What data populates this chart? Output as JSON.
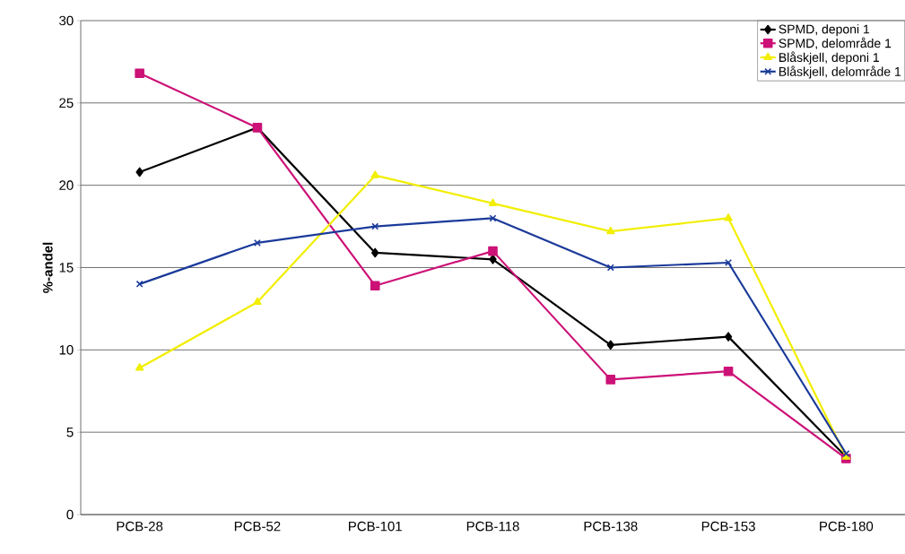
{
  "chart_data": {
    "type": "line",
    "ylabel": "%-andel",
    "categories": [
      "PCB-28",
      "PCB-52",
      "PCB-101",
      "PCB-118",
      "PCB-138",
      "PCB-153",
      "PCB-180"
    ],
    "series": [
      {
        "name": "SPMD, deponi 1",
        "color": "#000000",
        "marker": "diamond",
        "values": [
          20.8,
          23.5,
          15.9,
          15.5,
          10.3,
          10.8,
          3.5
        ]
      },
      {
        "name": "SPMD, delområde 1",
        "color": "#cc1177",
        "marker": "square",
        "values": [
          26.8,
          23.5,
          13.9,
          16.0,
          8.2,
          8.7,
          3.4
        ]
      },
      {
        "name": "Blåskjell, deponi 1",
        "color": "#f2ee00",
        "marker": "triangle",
        "values": [
          8.9,
          12.9,
          20.6,
          18.9,
          17.2,
          18.0,
          3.5
        ]
      },
      {
        "name": "Blåskjell, delområde 1",
        "color": "#1a3a9a",
        "marker": "cross",
        "values": [
          14.0,
          16.5,
          17.5,
          18.0,
          15.0,
          15.3,
          3.7
        ]
      }
    ],
    "ylim": [
      0,
      30
    ],
    "yticks": [
      0,
      5,
      10,
      15,
      20,
      25,
      30
    ],
    "grid": "y",
    "legend": "top right"
  }
}
